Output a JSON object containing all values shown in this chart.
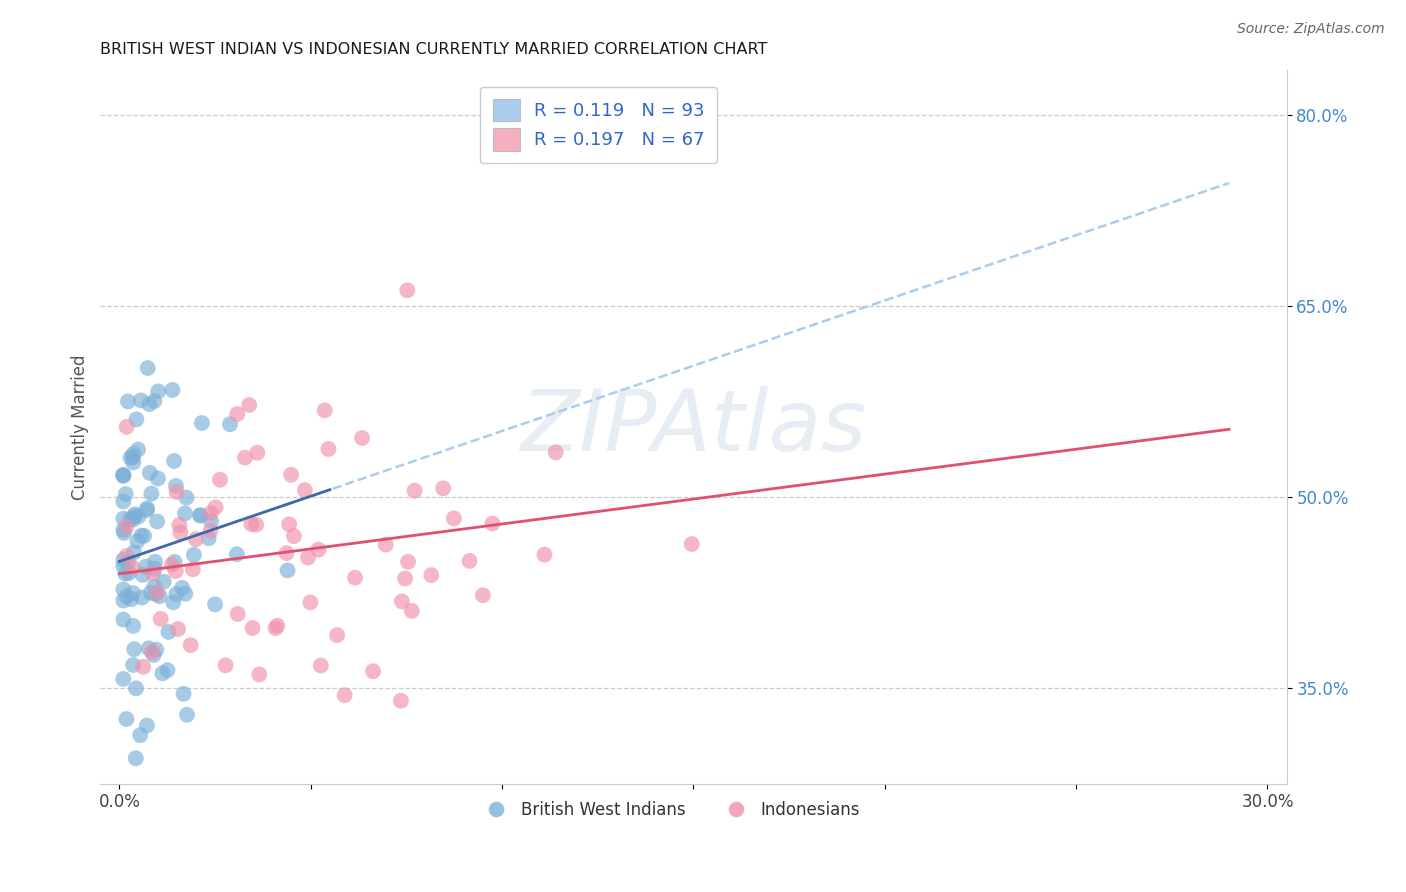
{
  "title": "BRITISH WEST INDIAN VS INDONESIAN CURRENTLY MARRIED CORRELATION CHART",
  "source_text": "Source: ZipAtlas.com",
  "ylabel": "Currently Married",
  "watermark": "ZIPAtlas",
  "series1_color": "#7ab0d8",
  "series2_color": "#f090a8",
  "trendline1_color": "#4466aa",
  "trendline2_color": "#e05070",
  "trendline_dashed_color": "#aaccee",
  "legend_color1": "#aaccee",
  "legend_color2": "#f4b0c0",
  "legend_label1": "R = 0.119   N = 93",
  "legend_label2": "R = 0.197   N = 67",
  "bottom_legend1": "British West Indians",
  "bottom_legend2": "Indonesians",
  "ytick_positions": [
    0.35,
    0.5,
    0.65,
    0.8
  ],
  "ytick_labels": [
    "35.0%",
    "50.0%",
    "65.0%",
    "80.0%"
  ],
  "xlim": [
    -0.005,
    0.305
  ],
  "ylim": [
    0.275,
    0.835
  ],
  "R1": 0.119,
  "N1": 93,
  "R2": 0.197,
  "N2": 67
}
